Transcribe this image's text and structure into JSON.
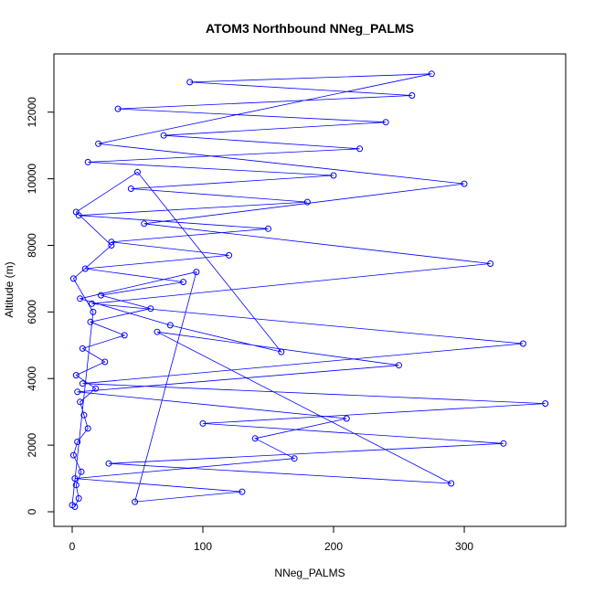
{
  "chart_data": {
    "type": "scatter",
    "title": "ATOM3 Northbound NNeg_PALMS",
    "xlabel": "NNeg_PALMS",
    "ylabel": "Altitude (m)",
    "xlim": [
      0,
      365
    ],
    "ylim": [
      0,
      13200
    ],
    "x_ticks": [
      0,
      100,
      200,
      300
    ],
    "y_ticks": [
      0,
      2000,
      4000,
      6000,
      8000,
      10000,
      12000
    ],
    "x_tick_labels": [
      "0",
      "100",
      "200",
      "300"
    ],
    "y_tick_labels": [
      "0",
      "2000",
      "4000",
      "6000",
      "8000",
      "10000",
      "12000"
    ],
    "grid": false,
    "legend": "none",
    "marker": "open-circle",
    "connected_lines": true,
    "color": "#0000ff",
    "series": [
      {
        "x": [
          2,
          5,
          3,
          7,
          1,
          4,
          12,
          9,
          6,
          18,
          3,
          25,
          8,
          40,
          14,
          60,
          22,
          85,
          10,
          120,
          30,
          150,
          5,
          180,
          45,
          200,
          12,
          220,
          70,
          240,
          35,
          260,
          90,
          275,
          20,
          300,
          55,
          320,
          15,
          345,
          8,
          362,
          100,
          330,
          28,
          290,
          65,
          250,
          4,
          210,
          140,
          170,
          2,
          130,
          48,
          95,
          6,
          75,
          160,
          50,
          3,
          30,
          1,
          16,
          0
        ],
        "y": [
          150,
          400,
          800,
          1200,
          1700,
          2100,
          2500,
          2900,
          3300,
          3700,
          4100,
          4500,
          4900,
          5300,
          5700,
          6100,
          6500,
          6900,
          7300,
          7700,
          8100,
          8500,
          8900,
          9300,
          9700,
          10100,
          10500,
          10900,
          11300,
          11700,
          12100,
          12500,
          12900,
          13150,
          11050,
          9850,
          8650,
          7450,
          6250,
          5050,
          3850,
          3250,
          2650,
          2050,
          1450,
          850,
          5400,
          4400,
          3600,
          2800,
          2200,
          1600,
          1000,
          600,
          300,
          7200,
          6400,
          5600,
          4800,
          10200,
          9000,
          8000,
          7000,
          6000,
          200
        ]
      }
    ]
  }
}
